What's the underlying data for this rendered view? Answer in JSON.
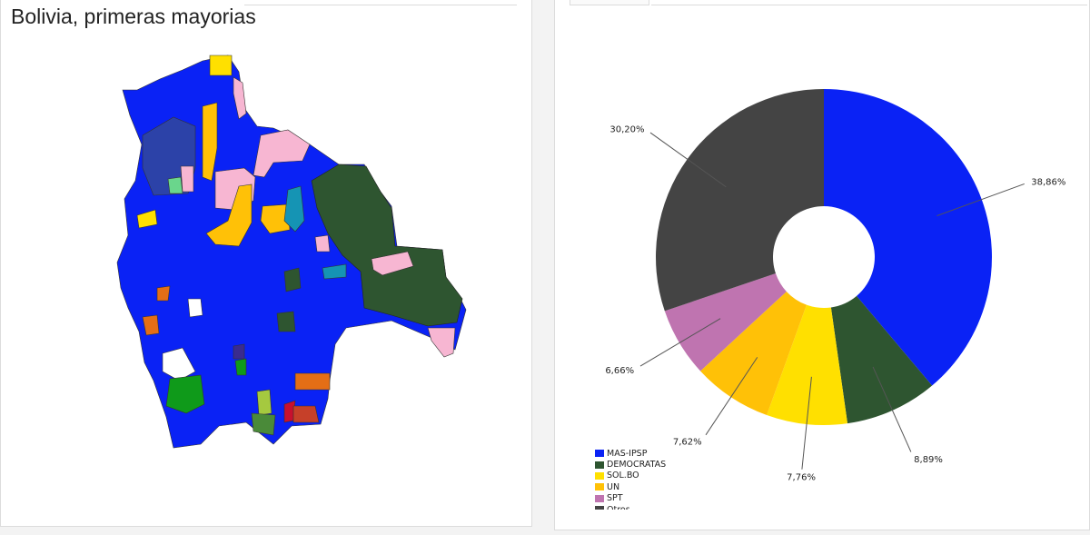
{
  "map": {
    "title": "Bolivia, primeras mayorias"
  },
  "chart_data": {
    "type": "pie",
    "donut": true,
    "title": "",
    "legend_position": "bottom-left",
    "categories": [
      "MAS-IPSP",
      "DEMOCRATAS",
      "SOL.BO",
      "UN",
      "SPT",
      "Otros"
    ],
    "values": [
      38.86,
      8.89,
      7.76,
      7.62,
      6.66,
      30.2
    ],
    "labels": [
      "38,86%",
      "8,89%",
      "7,76%",
      "7,62%",
      "6,66%",
      "30,20%"
    ],
    "colors": [
      "#0a22f5",
      "#2e5530",
      "#ffe000",
      "#ffc107",
      "#bf74b0",
      "#444444"
    ]
  }
}
